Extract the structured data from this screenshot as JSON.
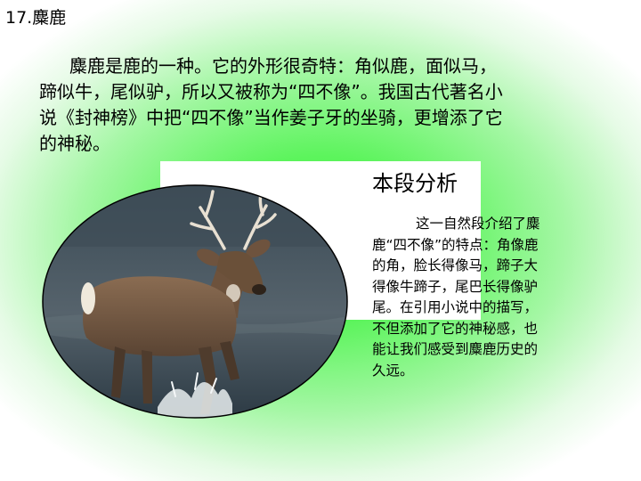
{
  "slide": {
    "title": "17.麋鹿"
  },
  "intro": {
    "lines": [
      "麋鹿是鹿的一种。它的外形很奇特：角似鹿，面似马，",
      "蹄似牛，尾似驴，所以又被称为“四不像”。我国古代著名小",
      "说《封神榜》中把“四不像”当作姜子牙的坐骑，更增添了它",
      "的神秘。"
    ]
  },
  "analysis": {
    "title": "本段分析",
    "lines": [
      "这一自然段介绍了麋",
      "鹿“四不像”的特点：角像鹿",
      "的角，脸长得像马，蹄子大",
      "得像牛蹄子，尾巴长得像驴",
      "尾。在引用小说中的描写，",
      "不但添加了它的神秘感，也",
      "能让我们感受到麋鹿历史的",
      "久远。"
    ]
  },
  "photo": {
    "subject": "deer-walking-in-water"
  },
  "colors": {
    "background_center": "#3df03d",
    "background_edge": "#ffffff",
    "panel": "#ffffff",
    "text": "#000000"
  }
}
